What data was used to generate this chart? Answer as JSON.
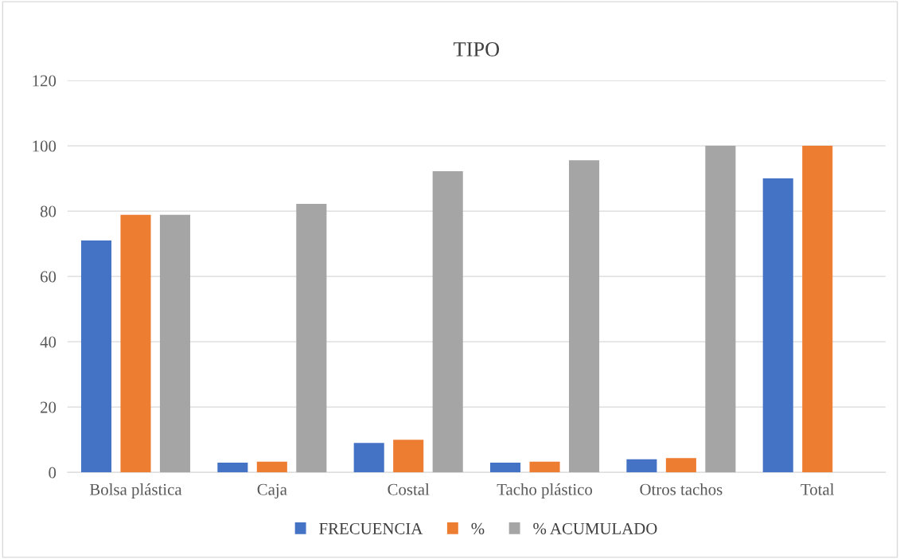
{
  "chart_data": {
    "type": "bar",
    "title": "TIPO",
    "categories": [
      "Bolsa plástica",
      "Caja",
      "Costal",
      "Tacho plástico",
      "Otros tachos",
      "Total"
    ],
    "series": [
      {
        "name": "FRECUENCIA",
        "color": "#4472c4",
        "values": [
          71,
          3,
          9,
          3,
          4,
          90
        ]
      },
      {
        "name": "%",
        "color": "#ed7d31",
        "values": [
          78.9,
          3.3,
          10,
          3.3,
          4.4,
          100
        ]
      },
      {
        "name": "% ACUMULADO",
        "color": "#a5a5a5",
        "values": [
          78.9,
          82.2,
          92.2,
          95.6,
          100,
          null
        ]
      }
    ],
    "ylim": [
      0,
      120
    ],
    "yticks": [
      0,
      20,
      40,
      60,
      80,
      100,
      120
    ],
    "grid": "y",
    "legend": "bottom"
  }
}
